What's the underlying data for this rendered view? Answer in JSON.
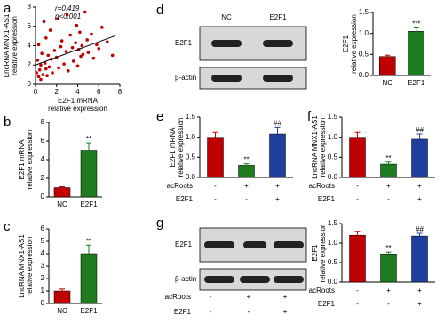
{
  "chart_data": [
    {
      "panel": "a",
      "type": "scatter",
      "ylabel": [
        "LncRNA MNX1-AS1",
        "relative expression"
      ],
      "xlabel": [
        "E2F1 mRNA",
        "relative expression"
      ],
      "annotations": [
        "r=0.419",
        "p<0.001"
      ],
      "x": [
        0.1,
        0.2,
        0.3,
        0.3,
        0.4,
        0.5,
        0.5,
        0.6,
        0.7,
        0.8,
        0.9,
        1.0,
        1.0,
        1.1,
        1.2,
        1.3,
        1.4,
        1.5,
        1.6,
        1.8,
        2.0,
        2.1,
        2.2,
        2.4,
        2.5,
        2.7,
        2.9,
        3.0,
        3.1,
        3.3,
        3.5,
        3.6,
        3.8,
        3.9,
        4.0,
        4.1,
        4.2,
        4.3,
        4.4,
        4.5,
        4.7,
        4.9,
        5.0,
        5.3,
        5.5,
        5.8,
        6.0,
        6.3,
        6.8,
        7.3
      ],
      "y": [
        1.2,
        2.5,
        0.8,
        4.1,
        1.5,
        2.0,
        0.5,
        3.2,
        1.0,
        6.5,
        2.2,
        1.6,
        4.8,
        0.9,
        3.0,
        1.8,
        5.6,
        2.6,
        1.2,
        3.5,
        2.8,
        6.8,
        1.7,
        3.9,
        4.5,
        2.1,
        3.4,
        7.2,
        1.4,
        5.1,
        3.8,
        2.4,
        4.3,
        6.1,
        1.9,
        3.6,
        5.4,
        2.9,
        4.0,
        3.1,
        7.5,
        4.6,
        3.3,
        5.2,
        2.7,
        4.1,
        3.7,
        5.9,
        4.4,
        3.0
      ],
      "color": "#c00000",
      "trend_line": {
        "x": [
          0,
          7.5
        ],
        "y": [
          2.0,
          5.0
        ]
      },
      "xlim": [
        0,
        8
      ],
      "ylim": [
        0,
        8
      ],
      "xticks": [
        0,
        2,
        4,
        6,
        8
      ],
      "yticks": [
        0,
        2,
        4,
        6,
        8
      ]
    },
    {
      "panel": "b",
      "type": "bar",
      "ylabel": [
        "E2F1 mRNA",
        "relative expression"
      ],
      "categories": [
        "NC",
        "E2F1"
      ],
      "values": [
        1,
        5
      ],
      "errors": [
        0.1,
        0.8
      ],
      "significance": [
        null,
        "**"
      ],
      "colors": [
        "#c00000",
        "#1e7b1e"
      ],
      "ylim": [
        0,
        8
      ],
      "yticks": [
        0,
        2,
        4,
        6,
        8
      ]
    },
    {
      "panel": "c",
      "type": "bar",
      "ylabel": [
        "LncRNA MNX1-AS1",
        "relative expression"
      ],
      "categories": [
        "NC",
        "E2F1"
      ],
      "values": [
        1,
        4
      ],
      "errors": [
        0.15,
        0.7
      ],
      "significance": [
        null,
        "**"
      ],
      "colors": [
        "#c00000",
        "#1e7b1e"
      ],
      "ylim": [
        0,
        6
      ],
      "yticks": [
        0,
        1,
        2,
        3,
        4,
        5,
        6
      ]
    },
    {
      "type": "bar",
      "ylabel": [
        "E2F1",
        "relative expression"
      ],
      "categories": [
        "NC",
        "E2F1"
      ],
      "values": [
        0.45,
        1.05
      ],
      "errors": [
        0.03,
        0.08
      ],
      "significance": [
        null,
        "***"
      ],
      "colors": [
        "#c00000",
        "#1e7b1e"
      ],
      "ylim": [
        0,
        1.5
      ],
      "yticks": [
        {
          "value": 0,
          "label": "0.0"
        },
        0.5,
        {
          "value": 1,
          "label": "1.0"
        },
        1.5
      ]
    },
    {
      "panel": "e",
      "type": "bar",
      "ylabel": [
        "E2F1 mRNA",
        "relative expression"
      ],
      "values": [
        1.0,
        0.3,
        1.08
      ],
      "errors": [
        0.12,
        0.04,
        0.17
      ],
      "significance": [
        null,
        "**",
        "##"
      ],
      "colors": [
        "#c00000",
        "#1e7b1e",
        "#1f3f9f"
      ],
      "conditions": [
        {
          "name": "acRoots",
          "values": [
            "-",
            "+",
            "+"
          ]
        },
        {
          "name": "E2F1",
          "values": [
            "-",
            "-",
            "+"
          ]
        }
      ],
      "ylim": [
        0,
        1.5
      ],
      "yticks": [
        {
          "value": 0,
          "label": "0.0"
        },
        0.5,
        {
          "value": 1,
          "label": "1.0"
        },
        1.5
      ]
    },
    {
      "panel": "f",
      "type": "bar",
      "ylabel": [
        "LncRNA MNX1-AS1",
        "relative expression"
      ],
      "values": [
        1.0,
        0.33,
        0.95
      ],
      "errors": [
        0.12,
        0.05,
        0.13
      ],
      "significance": [
        null,
        "**",
        "##"
      ],
      "colors": [
        "#c00000",
        "#1e7b1e",
        "#1f3f9f"
      ],
      "conditions": [
        {
          "name": "acRoots",
          "values": [
            "-",
            "+",
            "+"
          ]
        },
        {
          "name": "E2F1",
          "values": [
            "-",
            "-",
            "+"
          ]
        }
      ],
      "ylim": [
        0,
        1.5
      ],
      "yticks": [
        {
          "value": 0,
          "label": "0.0"
        },
        0.5,
        {
          "value": 1,
          "label": "1.0"
        },
        1.5
      ]
    },
    {
      "type": "bar",
      "ylabel": [
        "E2F1",
        "relative expression"
      ],
      "values": [
        1.2,
        0.72,
        1.18
      ],
      "errors": [
        0.1,
        0.05,
        0.07
      ],
      "significance": [
        null,
        "**",
        "##"
      ],
      "colors": [
        "#c00000",
        "#1e7b1e",
        "#1f3f9f"
      ],
      "conditions": [
        {
          "name": "acRoots",
          "values": [
            "-",
            "+",
            "+"
          ]
        },
        {
          "name": "E2F1",
          "values": [
            "-",
            "-",
            "+"
          ]
        }
      ],
      "ylim": [
        0,
        1.5
      ],
      "yticks": [
        {
          "value": 0,
          "label": "0.0"
        },
        0.5,
        {
          "value": 1,
          "label": "1.0"
        },
        1.5
      ]
    }
  ],
  "blots": [
    {
      "panel": "d",
      "columns": [
        "NC",
        "E2F1"
      ],
      "rows": [
        "E2F1",
        "β-actin"
      ]
    },
    {
      "panel": "g",
      "rows": [
        "E2F1",
        "β-actin"
      ],
      "conditions": [
        {
          "name": "acRoots",
          "values": [
            "-",
            "+",
            "+"
          ]
        },
        {
          "name": "E2F1",
          "values": [
            "-",
            "-",
            "+"
          ]
        }
      ]
    }
  ]
}
